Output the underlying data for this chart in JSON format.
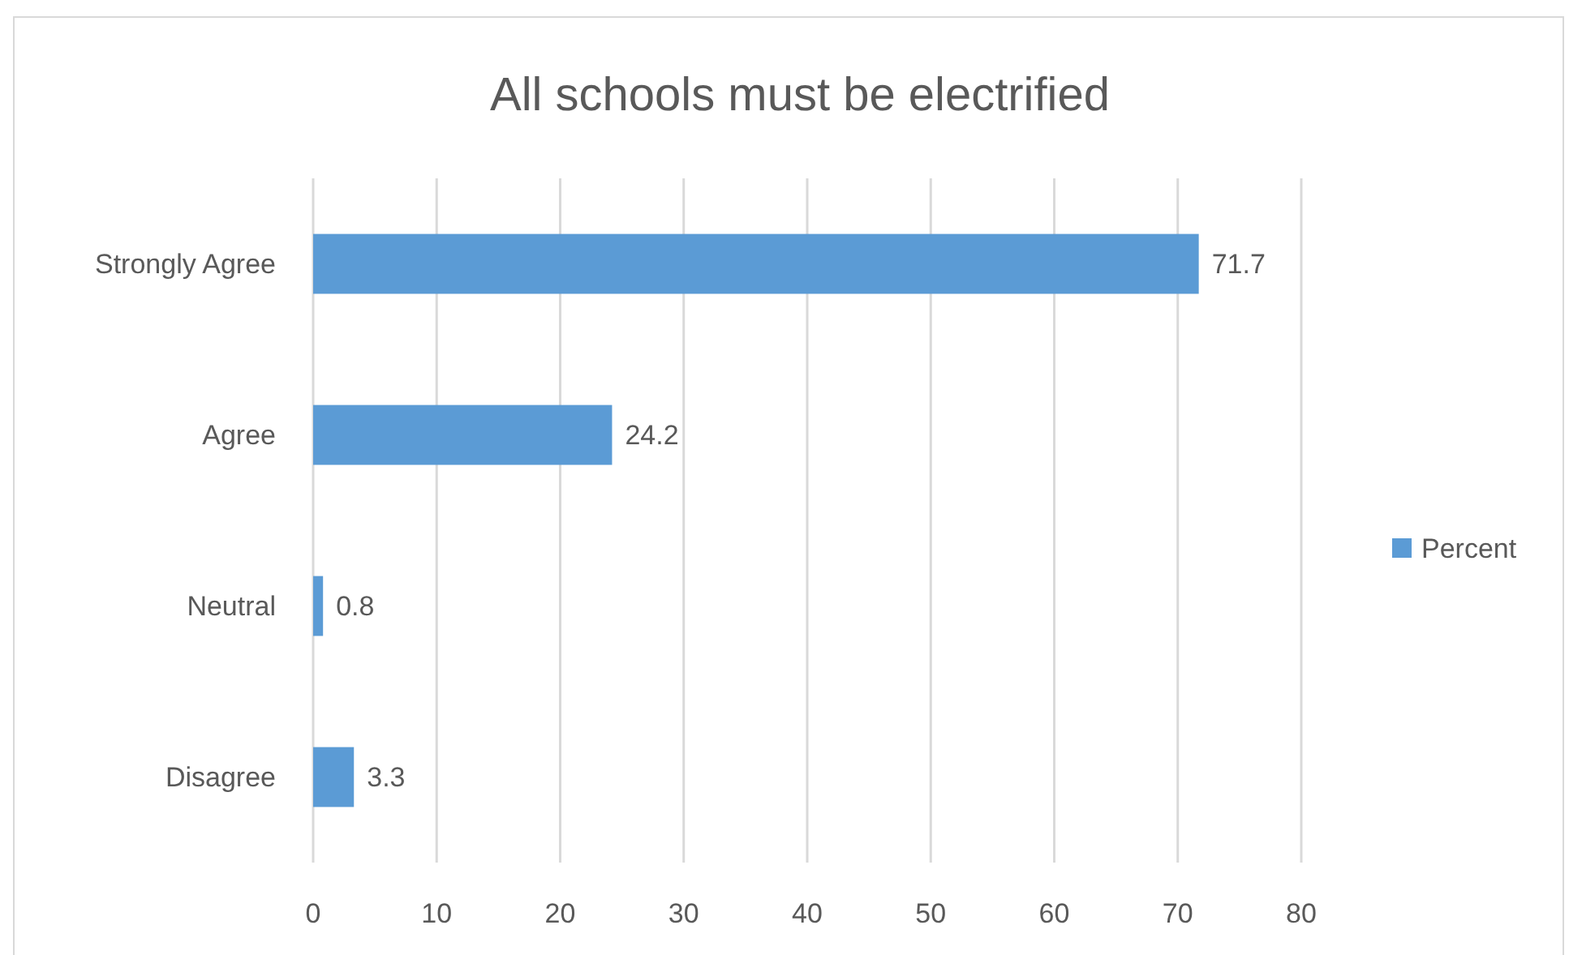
{
  "chart_data": {
    "type": "bar",
    "title": "All schools must be electrified",
    "orientation": "horizontal",
    "categories": [
      "Strongly Agree",
      "Agree",
      "Neutral",
      "Disagree"
    ],
    "series": [
      {
        "name": "Percent",
        "color": "#5b9bd5",
        "values": [
          71.7,
          24.2,
          0.8,
          3.3
        ]
      }
    ],
    "xlim": [
      0,
      80
    ],
    "xticks": [
      0,
      10,
      20,
      30,
      40,
      50,
      60,
      70,
      80
    ],
    "grid": "x",
    "legend": "right",
    "data_labels": true
  }
}
